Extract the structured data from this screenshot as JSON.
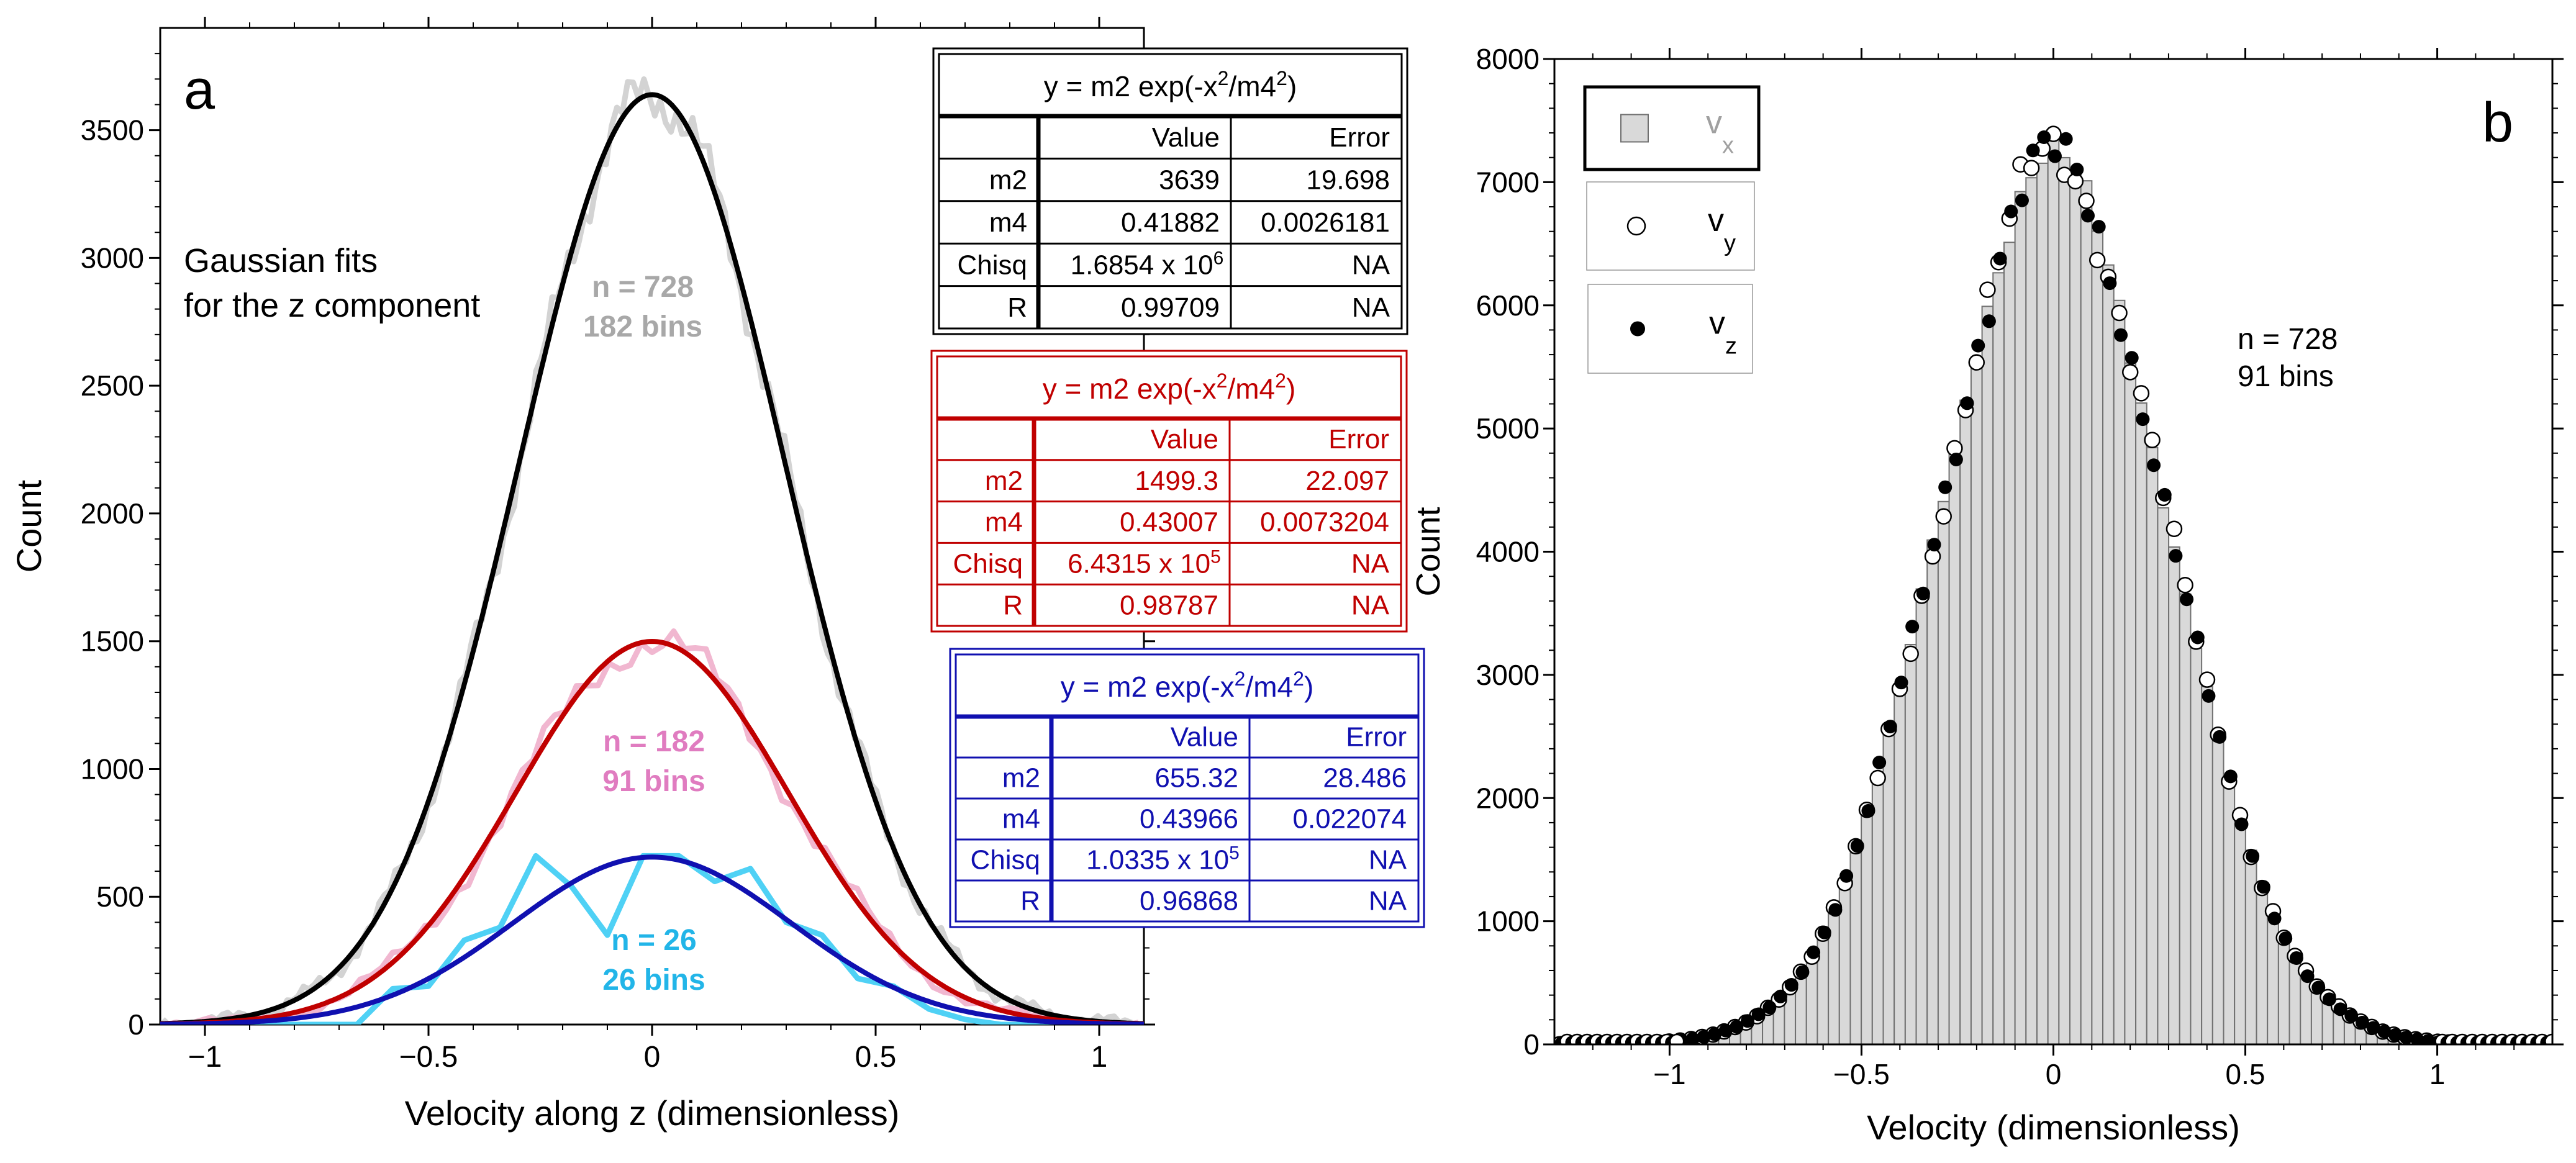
{
  "chart_data": [
    {
      "type": "line",
      "panel": "a",
      "xlabel": "Velocity along z (dimensionless)",
      "ylabel": "Count",
      "xlim": [
        -1.1,
        1.1
      ],
      "ylim": [
        0,
        3900
      ],
      "xticks": [
        -1,
        -0.5,
        0,
        0.5,
        1
      ],
      "xtick_labels": [
        "−1",
        "−0.5",
        "0",
        "0.5",
        "1"
      ],
      "yticks": [
        0,
        500,
        1000,
        1500,
        2000,
        2500,
        3000,
        3500
      ],
      "ytick_labels": [
        "0",
        "500",
        "1000",
        "1500",
        "2000",
        "2500",
        "3000",
        "3500"
      ],
      "annotation": [
        "Gaussian fits",
        "for the z component"
      ],
      "series": [
        {
          "name": "n = 728",
          "label_lines": [
            "n = 728",
            "182 bins"
          ],
          "color": "#d3d3d3",
          "style": "data",
          "noise_amp": 0.035,
          "model": {
            "m2": 3639,
            "m4": 0.41882
          },
          "n_points": 182
        },
        {
          "name": "n = 182",
          "label_lines": [
            "n = 182",
            "91 bins"
          ],
          "color": "#f1b7d0",
          "style": "data",
          "noise_amp": 0.06,
          "model": {
            "m2": 1499.3,
            "m4": 0.43007
          },
          "n_points": 91,
          "label_color": "#e07cc0"
        },
        {
          "name": "n = 26",
          "label_lines": [
            "n = 26",
            "26 bins"
          ],
          "color": "#4fd1f5",
          "style": "data",
          "x": [
            -1.06,
            -0.98,
            -0.9,
            -0.82,
            -0.74,
            -0.66,
            -0.58,
            -0.5,
            -0.42,
            -0.34,
            -0.26,
            -0.18,
            -0.1,
            -0.02,
            0.06,
            0.14,
            0.22,
            0.3,
            0.38,
            0.46,
            0.54,
            0.62,
            0.7,
            0.78,
            0.86,
            0.94
          ],
          "values": [
            0,
            0,
            0,
            0,
            0,
            0,
            140,
            150,
            330,
            380,
            660,
            540,
            350,
            660,
            660,
            560,
            610,
            400,
            350,
            180,
            150,
            60,
            20,
            0,
            0,
            0
          ],
          "label_color": "#22b5e8"
        },
        {
          "name": "fit n=728",
          "color": "#000000",
          "style": "fit",
          "model": {
            "m2": 3639,
            "m4": 0.41882
          }
        },
        {
          "name": "fit n=182",
          "color": "#c00000",
          "style": "fit",
          "model": {
            "m2": 1499.3,
            "m4": 0.43007
          }
        },
        {
          "name": "fit n=26",
          "color": "#1010b0",
          "style": "fit",
          "model": {
            "m2": 655.32,
            "m4": 0.43966
          }
        }
      ],
      "fit_tables": [
        {
          "color": "#000000",
          "title": [
            "y = m2 exp(-x",
            "2",
            "/m4",
            "2",
            ")"
          ],
          "headers": [
            "",
            "Value",
            "Error"
          ],
          "rows": [
            [
              "m2",
              "3639",
              "19.698"
            ],
            [
              "m4",
              "0.41882",
              "0.0026181"
            ],
            [
              "Chisq",
              "1.6854 x 10",
              "NA"
            ],
            [
              "R",
              "0.99709",
              "NA"
            ]
          ],
          "chisq_exp": "6"
        },
        {
          "color": "#c00000",
          "title": [
            "y = m2 exp(-x",
            "2",
            "/m4",
            "2",
            ")"
          ],
          "headers": [
            "",
            "Value",
            "Error"
          ],
          "rows": [
            [
              "m2",
              "1499.3",
              "22.097"
            ],
            [
              "m4",
              "0.43007",
              "0.0073204"
            ],
            [
              "Chisq",
              "6.4315 x 10",
              "NA"
            ],
            [
              "R",
              "0.98787",
              "NA"
            ]
          ],
          "chisq_exp": "5"
        },
        {
          "color": "#1010b0",
          "title": [
            "y = m2 exp(-x",
            "2",
            "/m4",
            "2",
            ")"
          ],
          "headers": [
            "",
            "Value",
            "Error"
          ],
          "rows": [
            [
              "m2",
              "655.32",
              "28.486"
            ],
            [
              "m4",
              "0.43966",
              "0.022074"
            ],
            [
              "Chisq",
              "1.0335 x 10",
              "NA"
            ],
            [
              "R",
              "0.96868",
              "NA"
            ]
          ],
          "chisq_exp": "5"
        }
      ]
    },
    {
      "type": "bar",
      "panel": "b",
      "xlabel": "Velocity (dimensionless)",
      "ylabel": "Count",
      "xlim": [
        -1.3,
        1.3
      ],
      "ylim": [
        0,
        8000
      ],
      "xticks": [
        -1,
        -0.5,
        0,
        0.5,
        1
      ],
      "xtick_labels": [
        "−1",
        "−0.5",
        "0",
        "0.5",
        "1"
      ],
      "yticks": [
        0,
        1000,
        2000,
        3000,
        4000,
        5000,
        6000,
        7000,
        8000
      ],
      "ytick_labels": [
        "0",
        "1000",
        "2000",
        "3000",
        "4000",
        "5000",
        "6000",
        "7000",
        "8000"
      ],
      "annotation": [
        "n = 728",
        "91 bins"
      ],
      "n_bins": 91,
      "bin_width": 0.0286,
      "model": {
        "peak": 7150,
        "sigma": 0.295
      },
      "legend": [
        {
          "symbol": "bar",
          "label": "v",
          "sub": "x",
          "label_color": "#a0a0a0"
        },
        {
          "symbol": "open-circle",
          "label": "v",
          "sub": "y",
          "label_color": "#000000"
        },
        {
          "symbol": "filled-circle",
          "label": "v",
          "sub": "z",
          "label_color": "#000000"
        }
      ],
      "series": [
        {
          "name": "vx",
          "symbol": "bar",
          "color": "#d9d9d9"
        },
        {
          "name": "vy",
          "symbol": "open-circle",
          "color": "#ffffff",
          "noise_amp": 0.045
        },
        {
          "name": "vz",
          "symbol": "filled-circle",
          "color": "#000000",
          "noise_amp": 0.045
        }
      ]
    }
  ]
}
